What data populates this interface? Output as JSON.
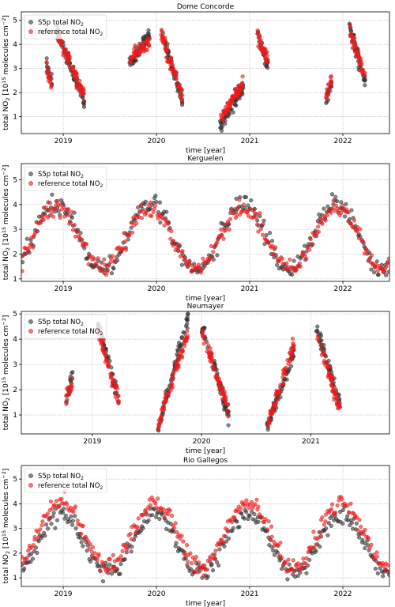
{
  "chart_data": [
    {
      "type": "scatter",
      "title": "Dome Concorde",
      "xlabel": "time [year]",
      "ylabel": "total NO",
      "ylabel_sub": "2",
      "ylabel_rest": " [10",
      "ylabel_sup": "15",
      "ylabel_tail": " molecules cm",
      "ylabel_sup2": "−2",
      "ylabel_close": "]",
      "xlim": [
        2018.55,
        2022.5
      ],
      "ylim": [
        0.3,
        5.35
      ],
      "xticks": [
        2019,
        2020,
        2021,
        2022
      ],
      "xtick_labels": [
        "2019",
        "2020",
        "2021",
        "2022"
      ],
      "yticks": [
        1,
        2,
        3,
        4,
        5
      ],
      "ytick_labels": [
        "1",
        "2",
        "3",
        "4",
        "5"
      ],
      "grid": true,
      "legend": "top-left",
      "series": [
        {
          "name": "S5p total NO",
          "name_sub": "2",
          "color": "#333333",
          "mode": "polar",
          "segments": [
            [
              2018.82,
              2018.88,
              3.2,
              2.4
            ],
            [
              2018.93,
              2019.23,
              4.6,
              1.6
            ],
            [
              2019.71,
              2019.93,
              3.2,
              4.4
            ],
            [
              2020.05,
              2020.28,
              4.6,
              1.6
            ],
            [
              2020.68,
              2020.93,
              0.6,
              2.2
            ],
            [
              2021.08,
              2021.2,
              4.4,
              3.1
            ],
            [
              2021.82,
              2021.88,
              1.7,
              2.4
            ],
            [
              2022.07,
              2022.24,
              4.7,
              2.4
            ]
          ]
        },
        {
          "name": "reference total NO",
          "name_sub": "2",
          "color": "#ee1a1a",
          "mode": "polar",
          "segments": [
            [
              2018.82,
              2018.88,
              3.0,
              2.3
            ],
            [
              2018.93,
              2019.23,
              4.5,
              1.8
            ],
            [
              2019.71,
              2019.93,
              3.4,
              4.1
            ],
            [
              2020.05,
              2020.28,
              4.4,
              1.8
            ],
            [
              2020.68,
              2020.93,
              0.9,
              2.4
            ],
            [
              2021.08,
              2021.2,
              4.3,
              3.3
            ],
            [
              2021.82,
              2021.88,
              1.9,
              2.5
            ],
            [
              2022.07,
              2022.24,
              4.6,
              2.6
            ]
          ]
        }
      ]
    },
    {
      "type": "scatter",
      "title": "Kerguelen",
      "xlabel": "time [year]",
      "ylabel": "total NO",
      "ylabel_sub": "2",
      "ylabel_rest": " [10",
      "ylabel_sup": "15",
      "ylabel_tail": " molecules cm",
      "ylabel_sup2": "−2",
      "ylabel_close": "]",
      "xlim": [
        2018.55,
        2022.5
      ],
      "ylim": [
        0.9,
        5.65
      ],
      "xticks": [
        2019,
        2020,
        2021,
        2022
      ],
      "xtick_labels": [
        "2019",
        "2020",
        "2021",
        "2022"
      ],
      "yticks": [
        1,
        2,
        3,
        4,
        5
      ],
      "ytick_labels": [
        "1",
        "2",
        "3",
        "4",
        "5"
      ],
      "grid": true,
      "legend": "top-left",
      "series": [
        {
          "name": "S5p total NO",
          "name_sub": "2",
          "color": "#333333",
          "mode": "seasonal",
          "base": 2.7,
          "amp": 1.35,
          "peak": 0.93,
          "noise": 0.35
        },
        {
          "name": "reference total NO",
          "name_sub": "2",
          "color": "#ee1a1a",
          "mode": "seasonal",
          "base": 2.65,
          "amp": 1.2,
          "peak": 0.93,
          "noise": 0.32
        }
      ]
    },
    {
      "type": "scatter",
      "title": "Neumayer",
      "xlabel": "time [year]",
      "ylabel": "total NO",
      "ylabel_sub": "2",
      "ylabel_rest": " [10",
      "ylabel_sup": "15",
      "ylabel_tail": " molecules cm",
      "ylabel_sup2": "−2",
      "ylabel_close": "]",
      "xlim": [
        2018.35,
        2021.72
      ],
      "ylim": [
        0.25,
        5.1
      ],
      "xticks": [
        2019,
        2020,
        2021
      ],
      "xtick_labels": [
        "2019",
        "2020",
        "2021"
      ],
      "yticks": [
        1,
        2,
        3,
        4,
        5
      ],
      "ytick_labels": [
        "1",
        "2",
        "3",
        "4",
        "5"
      ],
      "grid": true,
      "legend": "top-left",
      "series": [
        {
          "name": "S5p total NO",
          "name_sub": "2",
          "color": "#333333",
          "mode": "polar",
          "segments": [
            [
              2018.76,
              2018.82,
              1.5,
              2.6
            ],
            [
              2019.05,
              2019.25,
              4.6,
              1.5
            ],
            [
              2019.6,
              2019.88,
              0.5,
              4.9
            ],
            [
              2020.0,
              2020.25,
              4.6,
              0.9
            ],
            [
              2020.6,
              2020.85,
              0.5,
              3.5
            ],
            [
              2021.05,
              2021.27,
              4.5,
              1.4
            ]
          ]
        },
        {
          "name": "reference total NO",
          "name_sub": "2",
          "color": "#ee1a1a",
          "mode": "polar",
          "segments": [
            [
              2018.76,
              2018.82,
              1.8,
              2.3
            ],
            [
              2019.05,
              2019.25,
              4.4,
              1.4
            ],
            [
              2019.6,
              2019.88,
              0.6,
              4.3
            ],
            [
              2020.0,
              2020.25,
              4.4,
              1.0
            ],
            [
              2020.6,
              2020.85,
              0.6,
              3.8
            ],
            [
              2021.05,
              2021.27,
              4.3,
              1.2
            ]
          ]
        }
      ]
    },
    {
      "type": "scatter",
      "title": "Rio Gallegos",
      "xlabel": "time [year]",
      "ylabel": "total NO",
      "ylabel_sub": "2",
      "ylabel_rest": " [10",
      "ylabel_sup": "15",
      "ylabel_tail": " molecules cm",
      "ylabel_sup2": "−2",
      "ylabel_close": "]",
      "xlim": [
        2018.55,
        2022.5
      ],
      "ylim": [
        0.65,
        5.55
      ],
      "xticks": [
        2019,
        2020,
        2021,
        2022
      ],
      "xtick_labels": [
        "2019",
        "2020",
        "2021",
        "2022"
      ],
      "yticks": [
        1,
        2,
        3,
        4,
        5
      ],
      "ytick_labels": [
        "1",
        "2",
        "3",
        "4",
        "5"
      ],
      "grid": true,
      "legend": "top-left",
      "series": [
        {
          "name": "S5p total NO",
          "name_sub": "2",
          "color": "#333333",
          "mode": "seasonal",
          "base": 2.4,
          "amp": 1.2,
          "peak": 0.98,
          "noise": 0.32
        },
        {
          "name": "reference total NO",
          "name_sub": "2",
          "color": "#ee1a1a",
          "mode": "seasonal",
          "base": 2.75,
          "amp": 1.3,
          "peak": 0.98,
          "noise": 0.32
        }
      ]
    }
  ]
}
